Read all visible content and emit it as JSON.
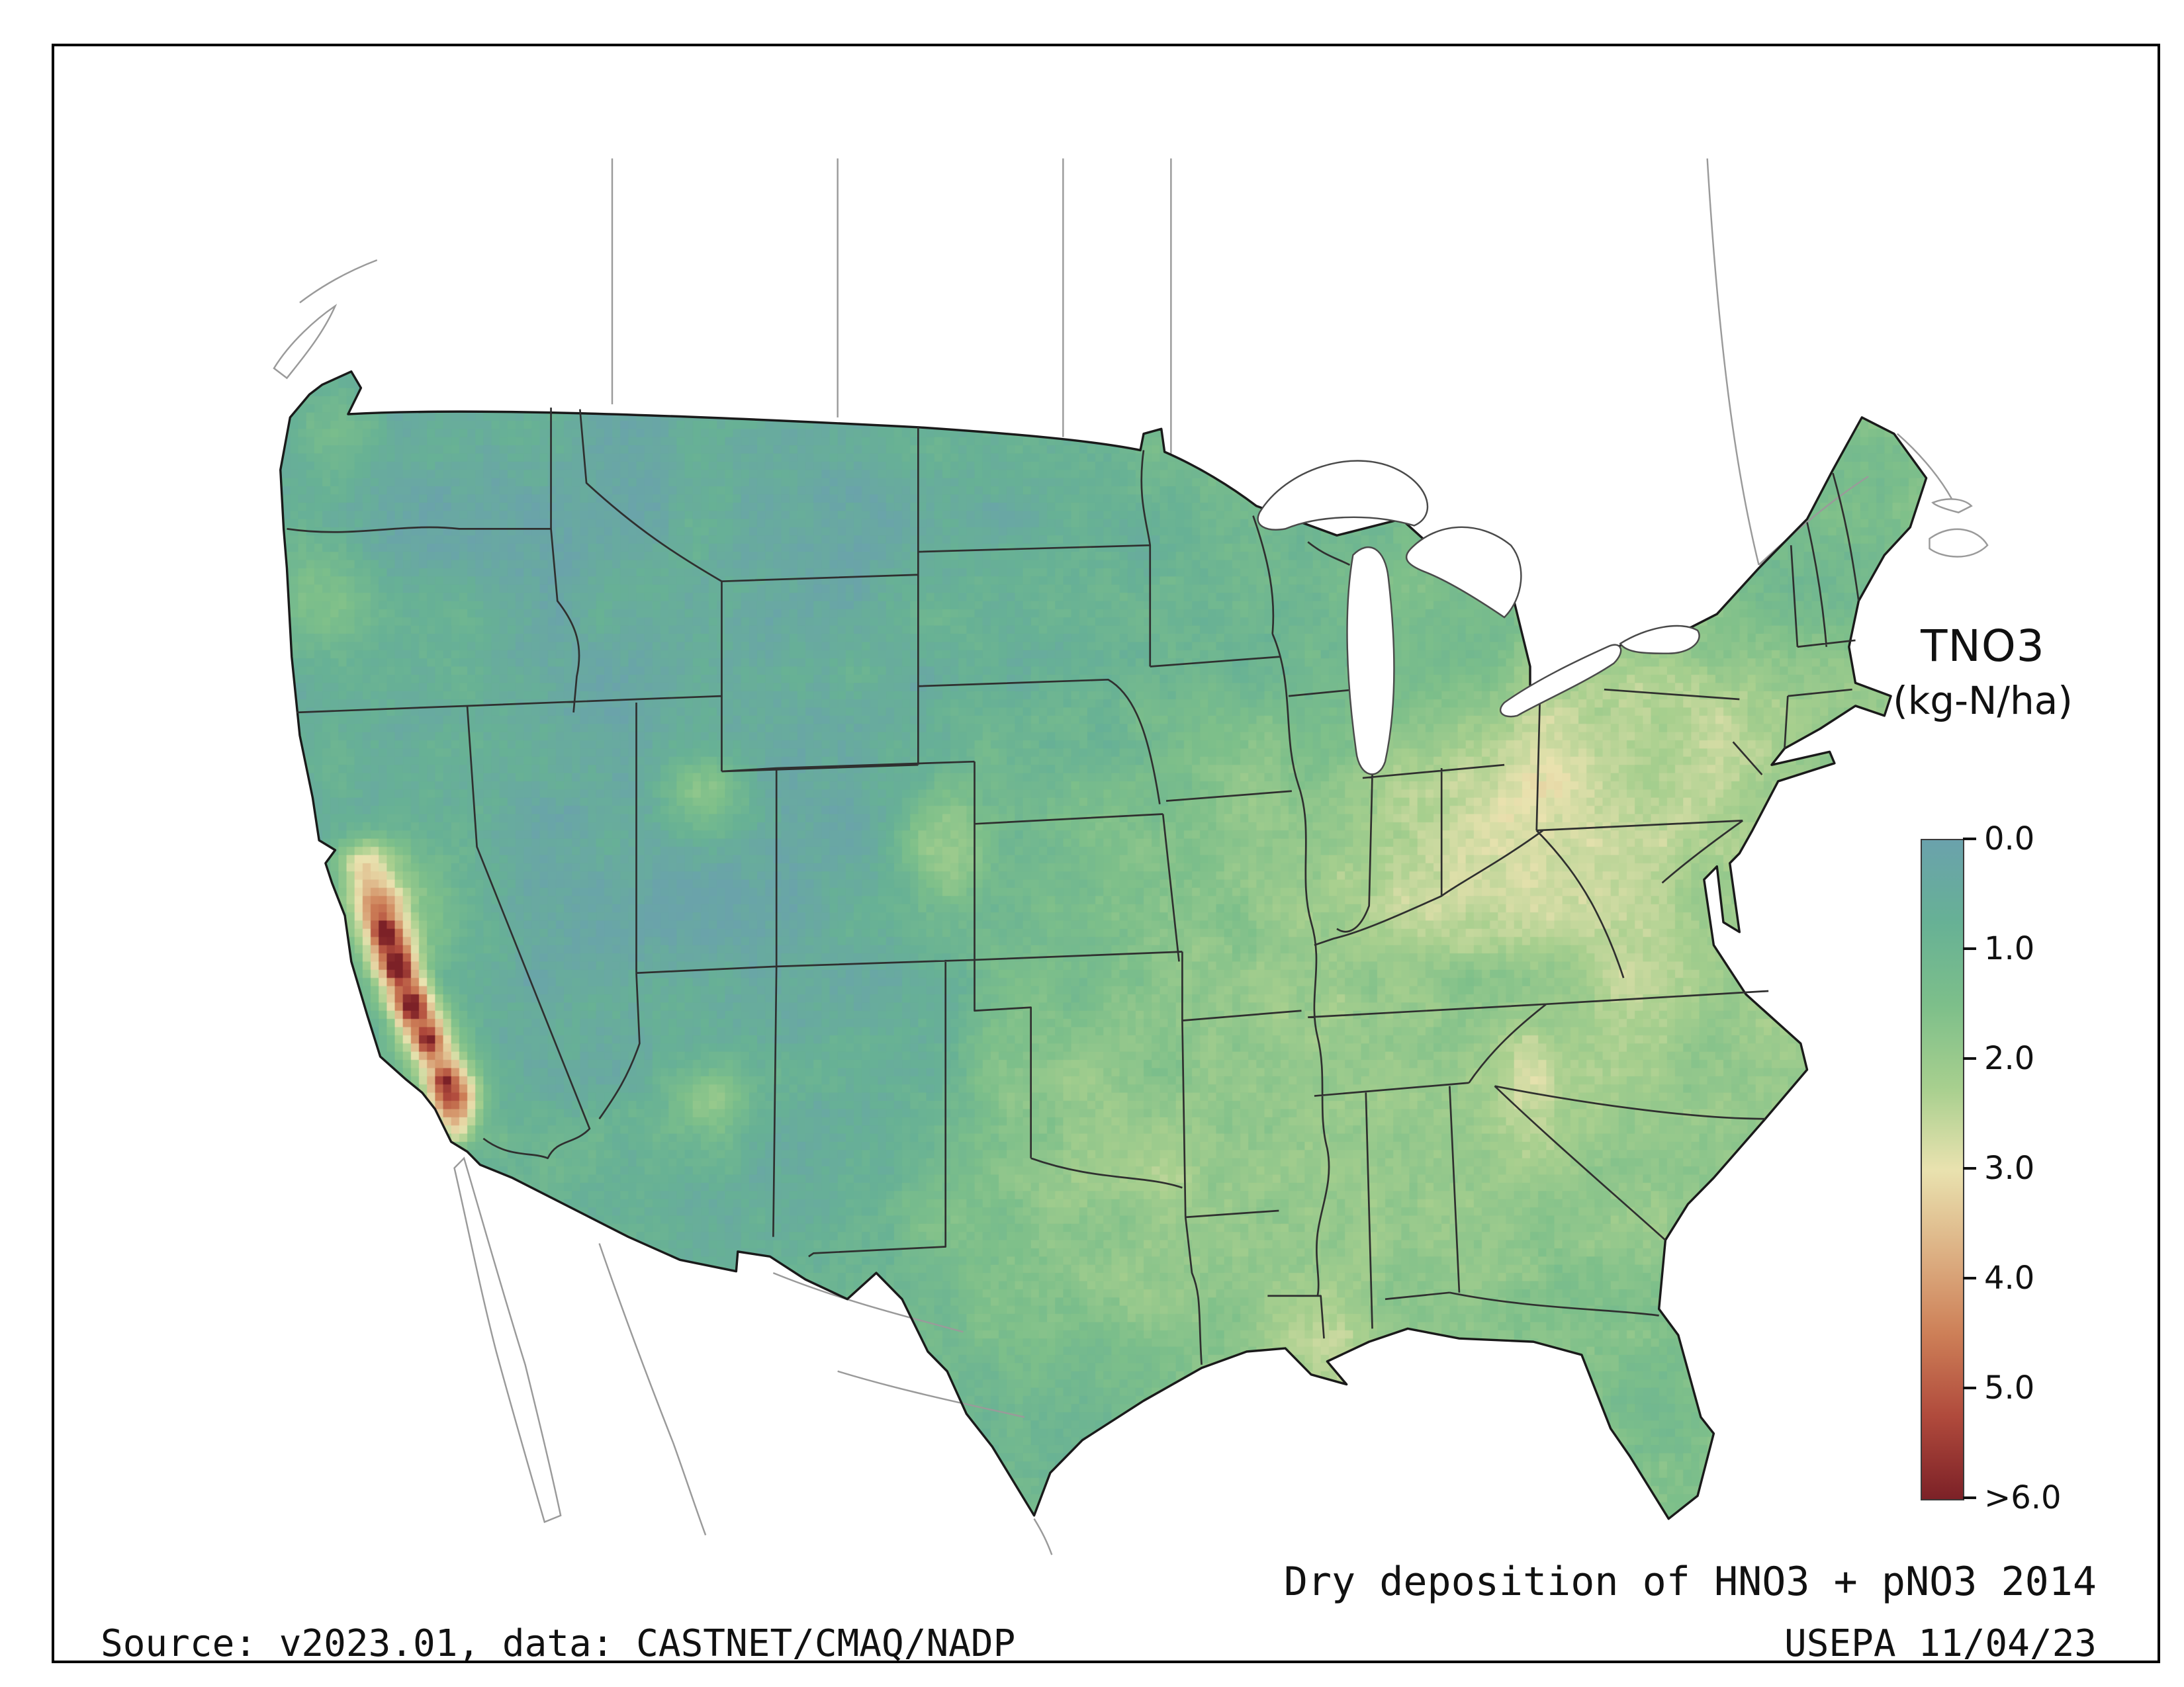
{
  "page": {
    "background": "#ffffff",
    "border_color": "#000000"
  },
  "legend": {
    "title_line1": "TNO3",
    "title_line2": "(kg-N/ha)",
    "ticks": [
      "0.0",
      "1.0",
      "2.0",
      "3.0",
      "4.0",
      "5.0",
      ">6.0"
    ]
  },
  "footer": {
    "caption": "Dry deposition of HNO3 + pNO3 2014",
    "source": "Source: v2023.01, data: CASTNET/CMAQ/NADP",
    "agency": "USEPA 11/04/23"
  },
  "map": {
    "name": "Continental United States gridded dry deposition of HNO3 + pNO3",
    "units": "kg-N/ha",
    "value_range": [
      0,
      6.5
    ],
    "colormap": [
      {
        "value": 0.0,
        "color": "#6aa2ac"
      },
      {
        "value": 0.75,
        "color": "#67b195"
      },
      {
        "value": 1.5,
        "color": "#7dbf8a"
      },
      {
        "value": 2.25,
        "color": "#a7cf8e"
      },
      {
        "value": 3.0,
        "color": "#e9e2af"
      },
      {
        "value": 3.75,
        "color": "#ddb184"
      },
      {
        "value": 4.5,
        "color": "#cd7f57"
      },
      {
        "value": 5.25,
        "color": "#b04a3c"
      },
      {
        "value": 6.0,
        "color": "#7c2127"
      }
    ],
    "hotspot_region": "California Central Valley and Southern California (values >6.0)"
  }
}
